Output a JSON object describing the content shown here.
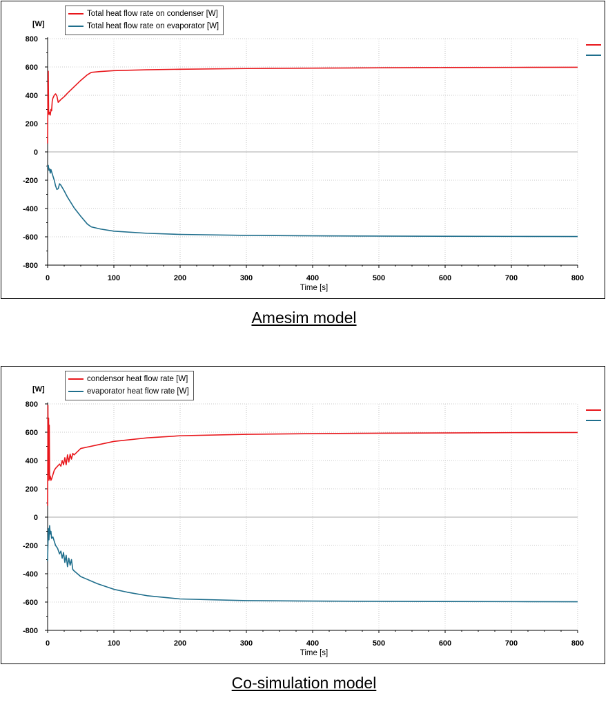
{
  "colors": {
    "condenser": "#e8161b",
    "evaporator": "#1f6e8c",
    "grid": "#c8c8c8",
    "zero": "#aaaaaa"
  },
  "panels": [
    {
      "caption": "Amesim model",
      "chart": {
        "type": "line",
        "ylabel": "[W]",
        "xlabel": "Time [s]",
        "xlim": [
          0,
          800
        ],
        "ylim": [
          -800,
          800
        ],
        "xticks": [
          0,
          100,
          200,
          300,
          400,
          500,
          600,
          700,
          800
        ],
        "yticks": [
          800,
          600,
          400,
          200,
          0,
          -200,
          -400,
          -600,
          -800
        ],
        "grid": true,
        "legend_position": "top-left",
        "series": [
          {
            "name": "Total heat flow rate on condenser [W]",
            "color": "#e8161b",
            "x": [
              0,
              0.5,
              1,
              1.5,
              2,
              3,
              4,
              5,
              6,
              7,
              8,
              10,
              12,
              14,
              16,
              18,
              20,
              25,
              30,
              40,
              50,
              60,
              66,
              80,
              100,
              150,
              200,
              300,
              400,
              500,
              600,
              700,
              800
            ],
            "y": [
              60,
              450,
              570,
              300,
              265,
              280,
              260,
              300,
              290,
              360,
              380,
              400,
              410,
              395,
              350,
              360,
              370,
              390,
              415,
              460,
              505,
              545,
              562,
              568,
              574,
              580,
              584,
              589,
              592,
              594,
              596,
              597,
              598
            ]
          },
          {
            "name": "Total heat flow rate on evaporator [W]",
            "color": "#1f6e8c",
            "x": [
              0,
              1,
              2,
              3,
              4,
              5,
              6,
              8,
              10,
              12,
              14,
              16,
              18,
              20,
              25,
              30,
              40,
              50,
              60,
              66,
              80,
              100,
              150,
              200,
              300,
              400,
              500,
              600,
              700,
              800
            ],
            "y": [
              -110,
              -95,
              -130,
              -120,
              -150,
              -125,
              -140,
              -170,
              -200,
              -240,
              -265,
              -260,
              -225,
              -235,
              -275,
              -320,
              -395,
              -455,
              -510,
              -530,
              -545,
              -560,
              -575,
              -583,
              -590,
              -593,
              -595,
              -596,
              -597,
              -598
            ]
          }
        ]
      }
    },
    {
      "caption": "Co-simulation model",
      "chart": {
        "type": "line",
        "ylabel": "[W]",
        "xlabel": "Time [s]",
        "xlim": [
          0,
          800
        ],
        "ylim": [
          -800,
          800
        ],
        "xticks": [
          0,
          100,
          200,
          300,
          400,
          500,
          600,
          700,
          800
        ],
        "yticks": [
          800,
          600,
          400,
          200,
          0,
          -200,
          -400,
          -600,
          -800
        ],
        "grid": true,
        "legend_position": "top-left",
        "series": [
          {
            "name": "condensor heat flow rate [W]",
            "color": "#e8161b",
            "x": [
              0,
              0.5,
              1,
              1.5,
              2,
              2.5,
              3,
              4,
              5,
              6,
              8,
              10,
              12,
              15,
              18,
              20,
              22,
              24,
              26,
              28,
              30,
              32,
              34,
              36,
              38,
              40,
              50,
              75,
              100,
              150,
              200,
              300,
              400,
              500,
              600,
              700,
              800
            ],
            "y": [
              80,
              790,
              300,
              700,
              260,
              650,
              270,
              290,
              260,
              270,
              300,
              330,
              345,
              360,
              375,
              360,
              400,
              370,
              420,
              370,
              440,
              390,
              445,
              410,
              450,
              440,
              485,
              510,
              535,
              560,
              575,
              585,
              590,
              593,
              595,
              597,
              598
            ]
          },
          {
            "name": "evaporator heat flow rate [W]",
            "color": "#1f6e8c",
            "x": [
              0,
              1,
              2,
              3,
              4,
              5,
              6,
              8,
              10,
              12,
              15,
              18,
              20,
              22,
              24,
              26,
              28,
              30,
              32,
              34,
              36,
              38,
              40,
              50,
              60,
              75,
              100,
              120,
              150,
              200,
              300,
              400,
              500,
              600,
              700,
              800
            ],
            "y": [
              -310,
              -80,
              -160,
              -60,
              -120,
              -100,
              -150,
              -140,
              -170,
              -200,
              -220,
              -260,
              -240,
              -290,
              -250,
              -320,
              -270,
              -350,
              -290,
              -340,
              -300,
              -370,
              -380,
              -420,
              -440,
              -470,
              -510,
              -530,
              -555,
              -578,
              -590,
              -593,
              -595,
              -596,
              -597,
              -598
            ]
          }
        ]
      }
    }
  ]
}
